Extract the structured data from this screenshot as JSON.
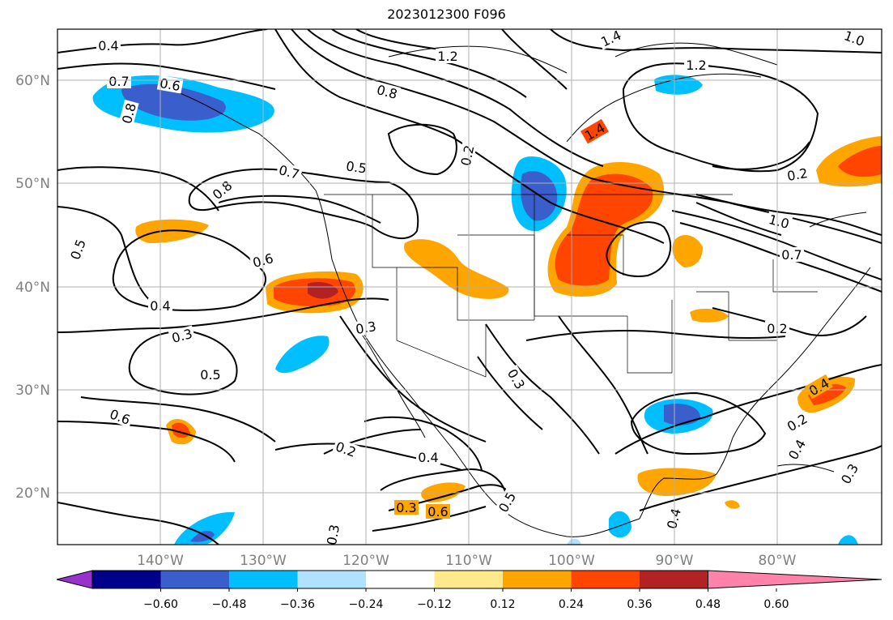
{
  "title": "2023012300 F096",
  "map": {
    "lat_ticks": [
      "60°N",
      "50°N",
      "40°N",
      "30°N",
      "20°N"
    ],
    "lon_ticks": [
      "140°W",
      "130°W",
      "120°W",
      "110°W",
      "100°W",
      "90°W",
      "80°W"
    ],
    "colors": {
      "frame": "#000000",
      "grid": "#b0b0b0",
      "tick_labels": "#808080"
    },
    "contour_labels": [
      {
        "text": "0.4"
      },
      {
        "text": "0.7"
      },
      {
        "text": "0.6"
      },
      {
        "text": "0.8"
      },
      {
        "text": "0.5"
      },
      {
        "text": "0.8"
      },
      {
        "text": "0.2"
      },
      {
        "text": "1.2"
      },
      {
        "text": "1.4"
      },
      {
        "text": "1.2"
      },
      {
        "text": "1.0"
      },
      {
        "text": "0.8"
      },
      {
        "text": "0.7"
      },
      {
        "text": "0.5"
      },
      {
        "text": "0.6"
      },
      {
        "text": "0.4"
      },
      {
        "text": "0.3"
      },
      {
        "text": "0.5"
      },
      {
        "text": "0.6"
      },
      {
        "text": "0.3"
      },
      {
        "text": "0.3"
      },
      {
        "text": "0.2"
      },
      {
        "text": "0.4"
      },
      {
        "text": "0.3"
      },
      {
        "text": "0.6"
      },
      {
        "text": "0.5"
      },
      {
        "text": "0.2"
      },
      {
        "text": "0.2"
      },
      {
        "text": "1.0"
      },
      {
        "text": "0.7"
      },
      {
        "text": "0.4"
      },
      {
        "text": "0.2"
      },
      {
        "text": "0.4"
      },
      {
        "text": "0.3"
      },
      {
        "text": "0.4"
      },
      {
        "text": "0.3"
      },
      {
        "text": "1.4"
      }
    ]
  },
  "colorbar": {
    "tick_labels": [
      "−0.60",
      "−0.48",
      "−0.36",
      "−0.24",
      "−0.12",
      "0.12",
      "0.24",
      "0.36",
      "0.48",
      "0.60"
    ],
    "colors": [
      "#9932cc",
      "#00008b",
      "#3a5fcd",
      "#00bfff",
      "#b0e2ff",
      "#ffffff",
      "#ffe98a",
      "#ffa500",
      "#ff4500",
      "#b22222",
      "#ff82ab"
    ]
  }
}
